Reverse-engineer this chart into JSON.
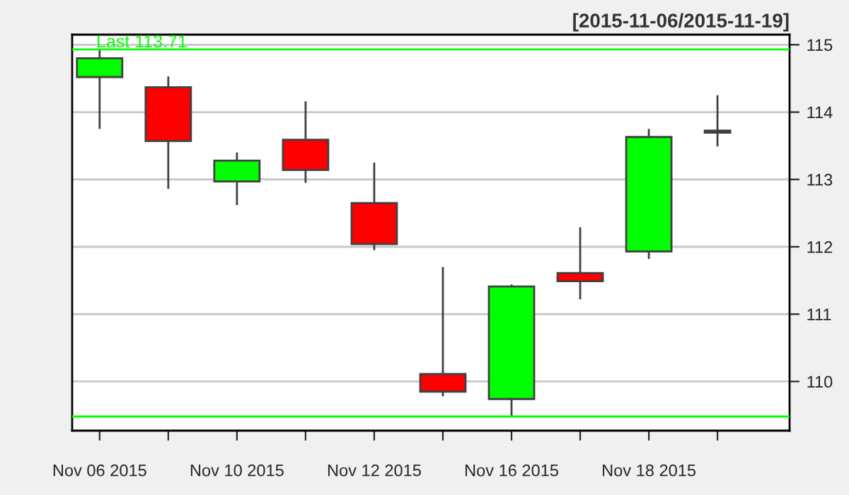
{
  "chart_data": {
    "type": "candlestick",
    "subtitle": "[2015-11-06/2015-11-19]",
    "annotations": [
      "Last 113.71"
    ],
    "categories": [
      "Nov 06 2015",
      null,
      "Nov 10 2015",
      null,
      "Nov 12 2015",
      null,
      "Nov 16 2015",
      null,
      "Nov 18 2015",
      null
    ],
    "ohlc": [
      [
        114.52,
        114.93,
        113.75,
        114.8
      ],
      [
        114.37,
        114.53,
        112.86,
        113.57
      ],
      [
        112.97,
        113.4,
        112.62,
        113.28
      ],
      [
        113.59,
        114.16,
        112.95,
        113.14
      ],
      [
        112.65,
        113.25,
        111.95,
        112.04
      ],
      [
        110.11,
        111.7,
        109.78,
        109.85
      ],
      [
        109.74,
        111.44,
        109.49,
        111.41
      ],
      [
        111.61,
        112.29,
        111.22,
        111.49
      ],
      [
        111.93,
        113.75,
        111.82,
        113.63
      ],
      [
        113.71,
        114.25,
        113.49,
        113.71
      ]
    ],
    "colors": [
      "#00ff00",
      "#ff0000",
      "#00ff00",
      "#ff0000",
      "#ff0000",
      "#ff0000",
      "#00ff00",
      "#ff0000",
      "#00ff00",
      "#404040"
    ],
    "ref_lines": [
      {
        "axis": "y",
        "value": 114.93,
        "color": "#00ff00"
      },
      {
        "axis": "y",
        "value": 109.48,
        "color": "#00ff00"
      }
    ],
    "ylim": [
      109.27,
      115.15
    ],
    "yticks": [
      110,
      111,
      112,
      113,
      114,
      115
    ],
    "grid": "y"
  }
}
